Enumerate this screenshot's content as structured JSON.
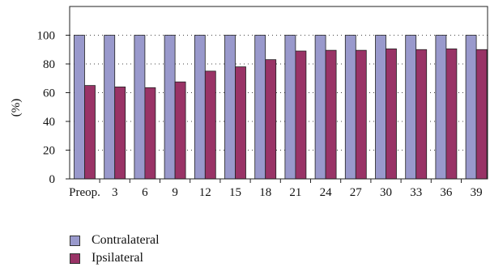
{
  "chart_data": {
    "type": "bar",
    "categories": [
      "Preop.",
      "3",
      "6",
      "9",
      "12",
      "15",
      "18",
      "21",
      "24",
      "27",
      "30",
      "33",
      "36",
      "39"
    ],
    "series": [
      {
        "name": "Contralateral",
        "color": "#9999cc",
        "values": [
          100,
          100,
          100,
          100,
          100,
          100,
          100,
          100,
          100,
          100,
          100,
          100,
          100,
          100
        ]
      },
      {
        "name": "Ipsilateral",
        "color": "#993366",
        "values": [
          65,
          64,
          63.5,
          67.5,
          75,
          78,
          83,
          89,
          89.5,
          89.5,
          90.5,
          90,
          90.5,
          90
        ]
      }
    ],
    "title": "",
    "xlabel": "",
    "ylabel": "(%)",
    "ylim": [
      0,
      120
    ],
    "yticks": [
      0,
      20,
      40,
      60,
      80,
      100
    ],
    "grid": "dotted horizontal",
    "legend_position": "bottom-left"
  }
}
